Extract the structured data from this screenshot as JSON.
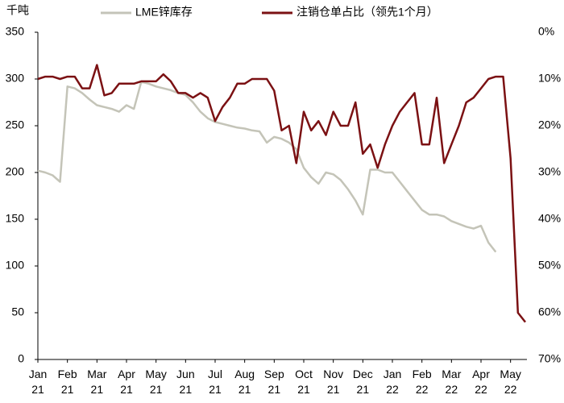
{
  "chart_data": {
    "type": "line",
    "y_label": "千吨",
    "categories": [
      "Jan 21",
      null,
      null,
      null,
      "Feb 21",
      null,
      null,
      null,
      "Mar 21",
      null,
      null,
      null,
      "Apr 21",
      null,
      null,
      null,
      "May 21",
      null,
      null,
      null,
      "Jun 21",
      null,
      null,
      null,
      "Jul 21",
      null,
      null,
      null,
      "Aug 21",
      null,
      null,
      null,
      "Sep 21",
      null,
      null,
      null,
      "Oct 21",
      null,
      null,
      null,
      "Nov 21",
      null,
      null,
      null,
      "Dec 21",
      null,
      null,
      null,
      "Jan 22",
      null,
      null,
      null,
      "Feb 22",
      null,
      null,
      null,
      "Mar 22",
      null,
      null,
      null,
      "Apr 22",
      null,
      null,
      null,
      "May 22",
      null,
      null
    ],
    "series": [
      {
        "name": "LME锌库存",
        "color": "#c4c4b8",
        "axis": "y",
        "values": [
          202,
          200,
          197,
          190,
          292,
          290,
          285,
          278,
          272,
          270,
          268,
          265,
          272,
          268,
          297,
          295,
          292,
          290,
          288,
          285,
          283,
          275,
          265,
          258,
          254,
          252,
          250,
          248,
          247,
          245,
          244,
          232,
          238,
          236,
          232,
          225,
          205,
          195,
          188,
          200,
          198,
          192,
          182,
          170,
          155,
          203,
          203,
          200,
          200,
          190,
          180,
          170,
          160,
          155,
          155,
          153,
          148,
          145,
          142,
          140,
          143,
          125,
          115,
          null,
          null,
          null,
          null
        ]
      },
      {
        "name": "注销仓单占比（领先1个月）",
        "color": "#7b1113",
        "axis": "y2",
        "values": [
          10,
          9.5,
          9.5,
          10,
          9.5,
          9.5,
          12,
          12,
          7,
          13.5,
          13,
          11,
          11,
          11,
          10.5,
          10.5,
          10.5,
          9,
          10.5,
          13,
          13,
          14,
          13,
          14,
          19,
          16,
          14,
          11,
          11,
          10,
          10,
          10,
          12.5,
          21,
          20,
          28,
          17,
          21,
          19,
          22,
          17,
          20,
          20,
          15,
          26,
          24,
          29,
          24,
          20,
          17,
          15,
          13,
          24,
          24,
          14,
          28,
          24,
          20,
          15,
          14,
          12,
          10,
          9.5,
          9.5,
          27,
          60,
          62
        ]
      }
    ],
    "ylim": [
      0,
      350
    ],
    "yticks": [
      0,
      50,
      100,
      150,
      200,
      250,
      300,
      350
    ],
    "y2lim": [
      70,
      0
    ],
    "y2ticks": [
      {
        "value": 0,
        "label": "0%"
      },
      {
        "value": 10,
        "label": "10%"
      },
      {
        "value": 20,
        "label": "20%"
      },
      {
        "value": 30,
        "label": "30%"
      },
      {
        "value": 40,
        "label": "40%"
      },
      {
        "value": 50,
        "label": "50%"
      },
      {
        "value": 60,
        "label": "60%"
      },
      {
        "value": 70,
        "label": "70%"
      }
    ]
  }
}
